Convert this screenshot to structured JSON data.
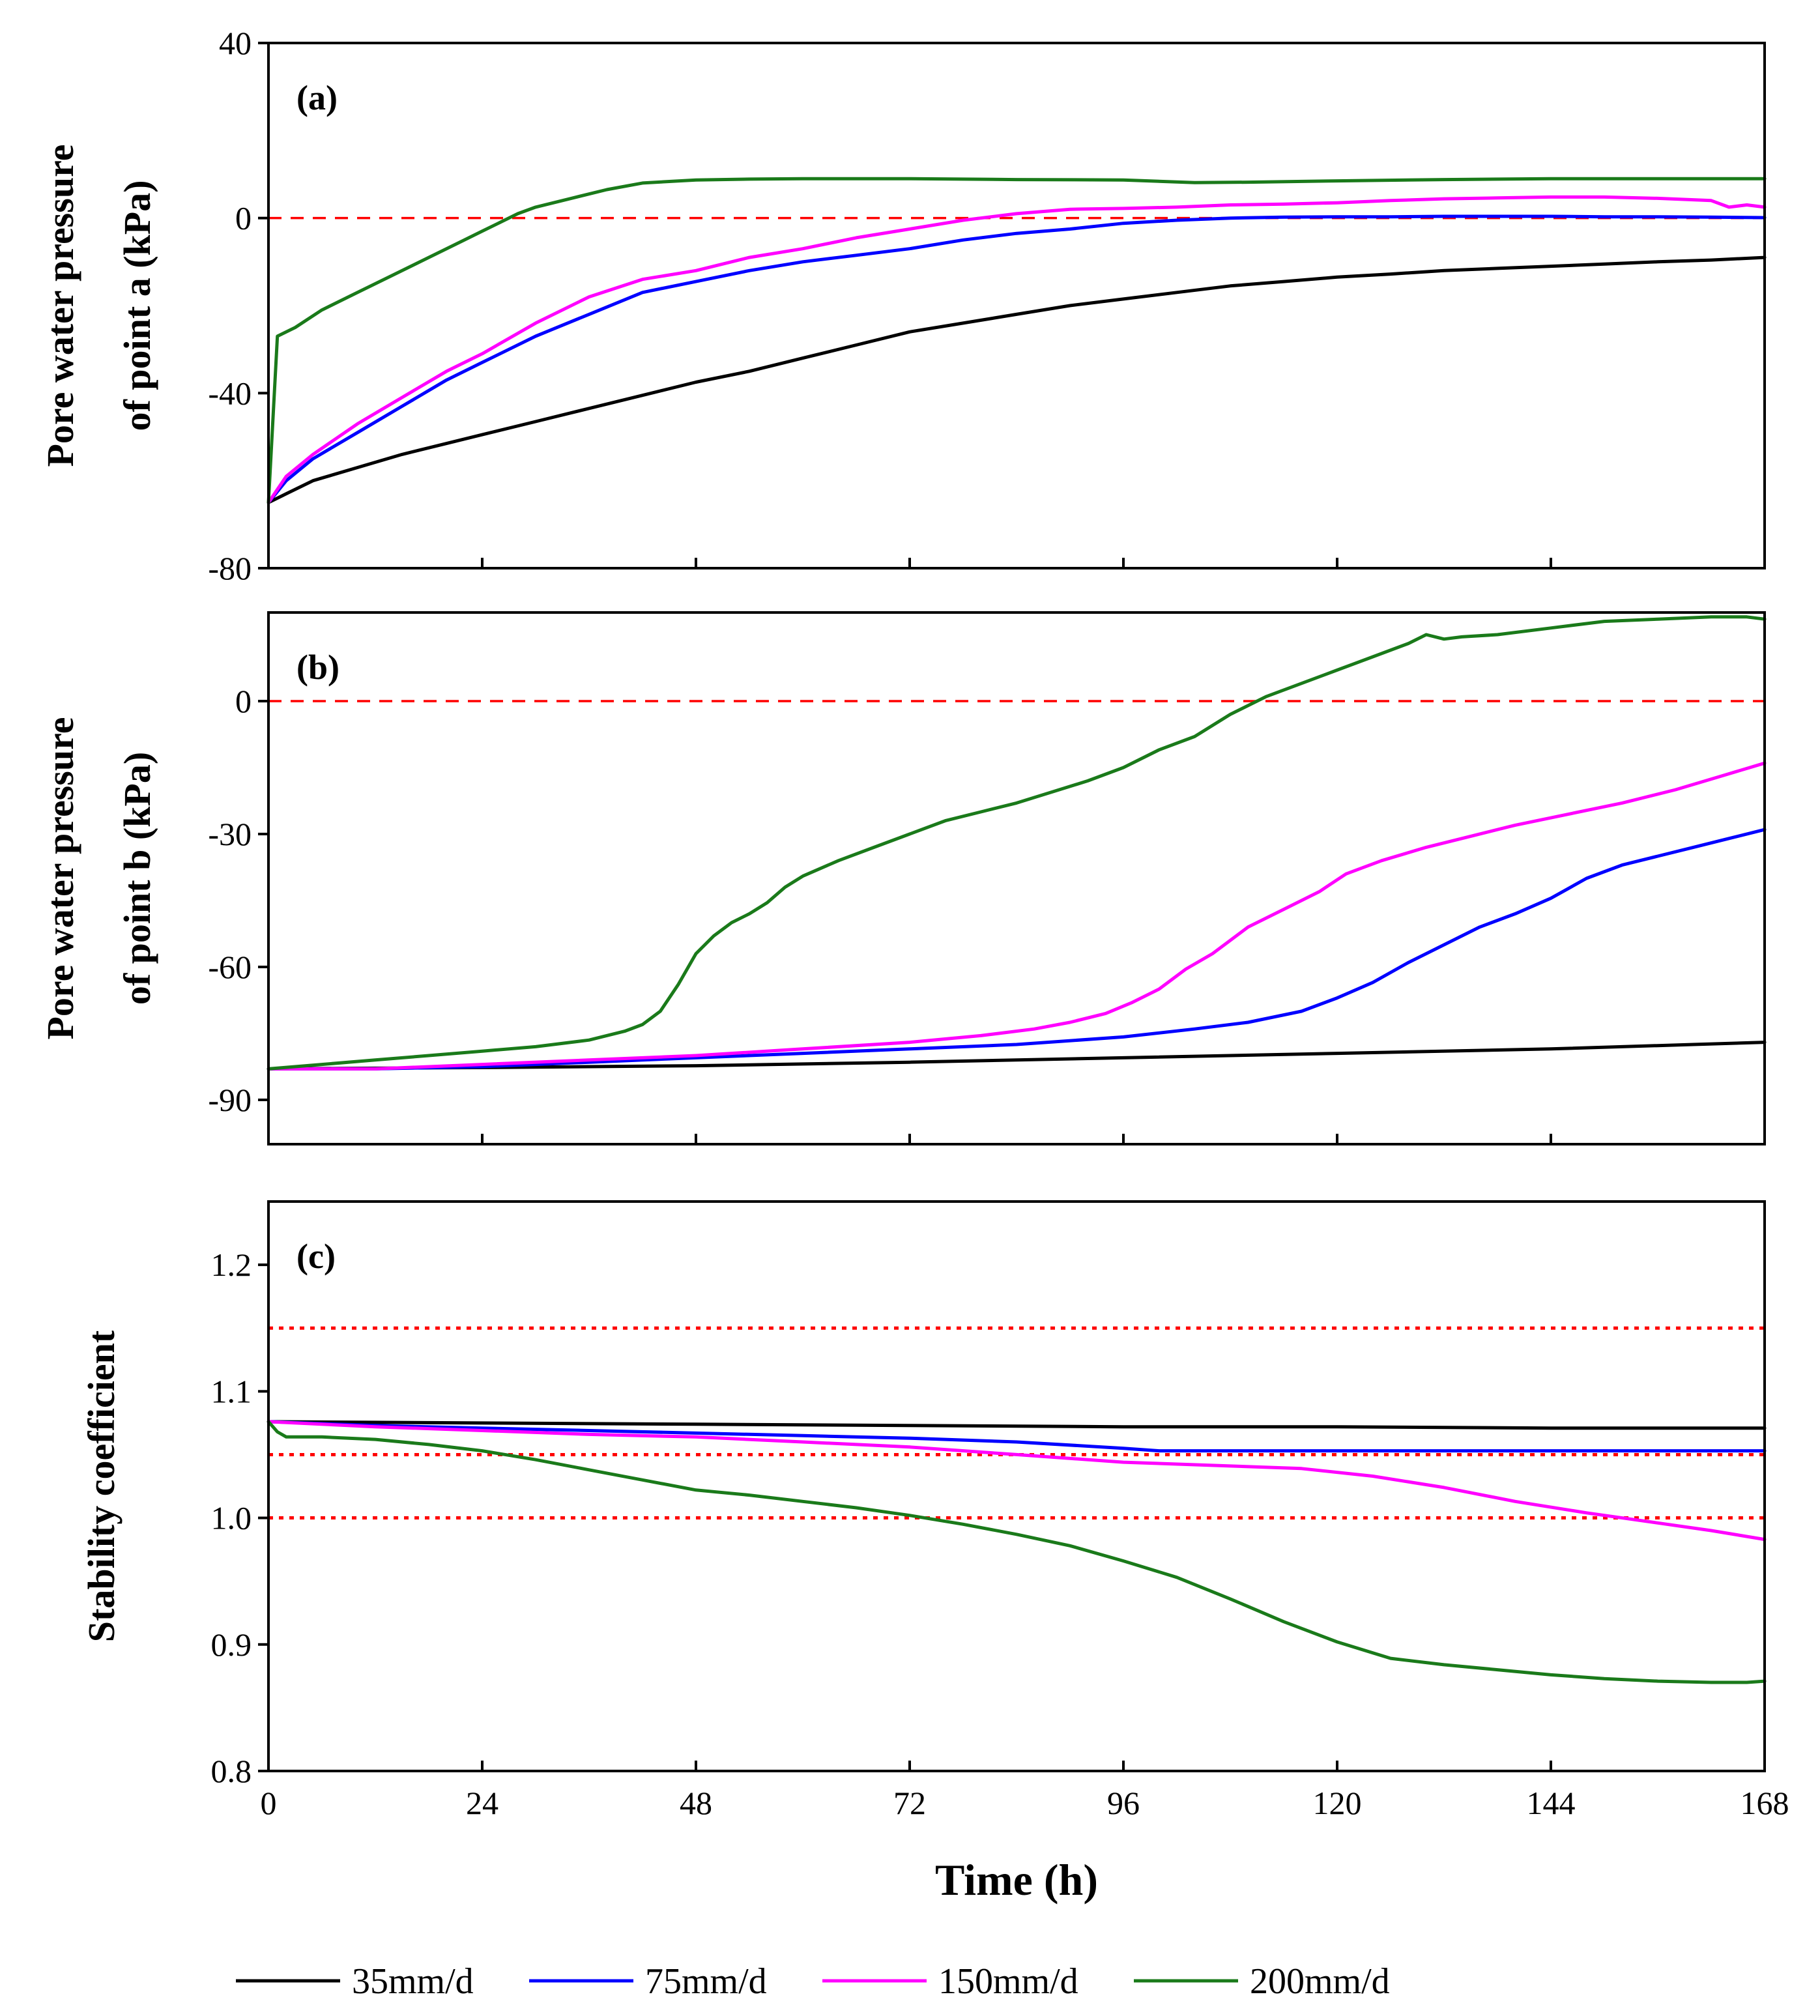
{
  "chart_data": [
    {
      "type": "line",
      "panel_label": "(a)",
      "ylabel": [
        "Pore water pressure",
        "of point a (kPa)"
      ],
      "xlabel": "",
      "xlim": [
        0,
        168
      ],
      "ylim": [
        -80,
        40
      ],
      "xticks": [
        0,
        24,
        48,
        72,
        96,
        120,
        144,
        168
      ],
      "yticks": [
        -80,
        -40,
        0,
        40
      ],
      "reference_lines": [
        {
          "y": 0,
          "style": "dashed",
          "color": "#ff0000"
        }
      ],
      "series": [
        {
          "name": "35mm/d",
          "color": "#000000",
          "x": [
            0,
            2,
            5,
            10,
            15,
            20,
            24,
            30,
            36,
            42,
            48,
            54,
            60,
            66,
            72,
            78,
            84,
            90,
            96,
            102,
            108,
            114,
            120,
            126,
            132,
            138,
            144,
            150,
            156,
            162,
            168
          ],
          "y": [
            -65,
            -63,
            -60,
            -57,
            -54,
            -51.5,
            -49.5,
            -46.5,
            -43.5,
            -40.5,
            -37.5,
            -35,
            -32,
            -29,
            -26,
            -24,
            -22,
            -20,
            -18.5,
            -17,
            -15.5,
            -14.5,
            -13.5,
            -12.8,
            -12,
            -11.5,
            -11,
            -10.5,
            -10,
            -9.6,
            -9
          ]
        },
        {
          "name": "75mm/d",
          "color": "#0000ff",
          "x": [
            0,
            2,
            5,
            10,
            15,
            20,
            24,
            30,
            36,
            42,
            48,
            54,
            60,
            66,
            72,
            78,
            84,
            90,
            96,
            102,
            108,
            114,
            120,
            126,
            132,
            138,
            144,
            150,
            156,
            162,
            168
          ],
          "y": [
            -65,
            -60,
            -55,
            -49,
            -43,
            -37,
            -33,
            -27,
            -22,
            -17,
            -14.5,
            -12,
            -10,
            -8.5,
            -7,
            -5,
            -3.5,
            -2.5,
            -1.2,
            -0.5,
            0,
            0.2,
            0.3,
            0.3,
            0.4,
            0.4,
            0.4,
            0.3,
            0.3,
            0.2,
            0.1
          ]
        },
        {
          "name": "150mm/d",
          "color": "#ff00ff",
          "x": [
            0,
            2,
            5,
            10,
            15,
            20,
            24,
            30,
            36,
            42,
            48,
            54,
            60,
            66,
            72,
            78,
            84,
            90,
            96,
            102,
            108,
            114,
            120,
            126,
            132,
            138,
            144,
            150,
            156,
            162,
            164,
            166,
            168
          ],
          "y": [
            -65,
            -59,
            -54,
            -47,
            -41,
            -35,
            -31,
            -24,
            -18,
            -14,
            -12,
            -9,
            -7,
            -4.5,
            -2.5,
            -0.5,
            1,
            2,
            2.2,
            2.5,
            3,
            3.2,
            3.5,
            4,
            4.4,
            4.6,
            4.8,
            4.8,
            4.5,
            4,
            2.5,
            3,
            2.5
          ]
        },
        {
          "name": "200mm/d",
          "color": "#1a7a1a",
          "x": [
            0,
            1,
            3,
            6,
            10,
            14,
            18,
            22,
            24,
            26,
            28,
            30,
            34,
            38,
            42,
            48,
            54,
            60,
            72,
            84,
            96,
            104,
            110,
            120,
            132,
            144,
            156,
            168
          ],
          "y": [
            -65,
            -27,
            -25,
            -21,
            -17,
            -13,
            -9,
            -5,
            -3,
            -1,
            1,
            2.5,
            4.5,
            6.5,
            8,
            8.7,
            8.9,
            9,
            9,
            8.8,
            8.7,
            8.1,
            8.2,
            8.5,
            8.8,
            9,
            9,
            9
          ]
        }
      ]
    },
    {
      "type": "line",
      "panel_label": "(b)",
      "ylabel": [
        "Pore water pressure",
        "of point b (kPa)"
      ],
      "xlabel": "",
      "xlim": [
        0,
        168
      ],
      "ylim": [
        -100,
        20
      ],
      "xticks": [
        0,
        24,
        48,
        72,
        96,
        120,
        144,
        168
      ],
      "yticks": [
        -90,
        -60,
        -30,
        0
      ],
      "reference_lines": [
        {
          "y": 0,
          "style": "dashed",
          "color": "#ff0000"
        }
      ],
      "series": [
        {
          "name": "35mm/d",
          "color": "#000000",
          "x": [
            0,
            24,
            48,
            72,
            96,
            120,
            144,
            160,
            168
          ],
          "y": [
            -83,
            -82.7,
            -82.3,
            -81.5,
            -80.5,
            -79.5,
            -78.5,
            -77.5,
            -77
          ]
        },
        {
          "name": "75mm/d",
          "color": "#0000ff",
          "x": [
            0,
            12,
            24,
            36,
            48,
            60,
            72,
            84,
            96,
            104,
            110,
            116,
            120,
            124,
            128,
            132,
            136,
            140,
            144,
            148,
            152,
            156,
            160,
            164,
            168
          ],
          "y": [
            -83,
            -83,
            -82.5,
            -81.5,
            -80.5,
            -79.5,
            -78.5,
            -77.5,
            -75.8,
            -74,
            -72.5,
            -70,
            -67,
            -63.5,
            -59,
            -55,
            -51,
            -48,
            -44.5,
            -40,
            -37,
            -35,
            -33,
            -31,
            -29
          ]
        },
        {
          "name": "150mm/d",
          "color": "#ff00ff",
          "x": [
            0,
            12,
            24,
            36,
            48,
            60,
            72,
            80,
            86,
            90,
            94,
            97,
            100,
            103,
            106,
            110,
            114,
            118,
            121,
            125,
            130,
            135,
            140,
            146,
            152,
            158,
            163,
            168
          ],
          "y": [
            -83,
            -83,
            -82,
            -81,
            -80,
            -78.5,
            -77,
            -75.5,
            -74,
            -72.5,
            -70.5,
            -68,
            -65,
            -60.5,
            -57,
            -51,
            -47,
            -43,
            -39,
            -36,
            -33,
            -30.5,
            -28,
            -25.5,
            -23,
            -20,
            -17,
            -14
          ]
        },
        {
          "name": "200mm/d",
          "color": "#1a7a1a",
          "x": [
            0,
            6,
            12,
            18,
            24,
            30,
            36,
            40,
            42,
            44,
            46,
            48,
            50,
            52,
            54,
            56,
            58,
            60,
            64,
            68,
            72,
            76,
            80,
            84,
            88,
            92,
            96,
            100,
            104,
            108,
            112,
            116,
            120,
            124,
            128,
            130,
            132,
            134,
            138,
            144,
            150,
            156,
            162,
            166,
            168
          ],
          "y": [
            -83,
            -82,
            -81,
            -80,
            -79,
            -78,
            -76.5,
            -74.5,
            -73,
            -70,
            -64,
            -57,
            -53,
            -50,
            -48,
            -45.5,
            -42,
            -39.5,
            -36,
            -33,
            -30,
            -27,
            -25,
            -23,
            -20.5,
            -18,
            -15,
            -11,
            -8,
            -3,
            1,
            4,
            7,
            10,
            13,
            15,
            14,
            14.5,
            15,
            16.5,
            18,
            18.5,
            19,
            19,
            18.5
          ]
        }
      ]
    },
    {
      "type": "line",
      "panel_label": "(c)",
      "ylabel": [
        "Stability coefficient"
      ],
      "xlabel": "Time (h)",
      "xlim": [
        0,
        168
      ],
      "ylim": [
        0.8,
        1.25
      ],
      "xticks": [
        0,
        24,
        48,
        72,
        96,
        120,
        144,
        168
      ],
      "xtick_labels": [
        "0",
        "24",
        "48",
        "72",
        "96",
        "120",
        "144",
        "168"
      ],
      "yticks": [
        0.8,
        0.9,
        1.0,
        1.1,
        1.2
      ],
      "ytick_labels": [
        "0.8",
        "0.9",
        "1.0",
        "1.1",
        "1.2"
      ],
      "reference_lines": [
        {
          "y": 1.15,
          "style": "dotted",
          "color": "#ff0000"
        },
        {
          "y": 1.05,
          "style": "dotted",
          "color": "#ff0000"
        },
        {
          "y": 1.0,
          "style": "dotted",
          "color": "#ff0000"
        }
      ],
      "series": [
        {
          "name": "35mm/d",
          "color": "#000000",
          "x": [
            0,
            24,
            48,
            72,
            96,
            120,
            144,
            168
          ],
          "y": [
            1.076,
            1.075,
            1.074,
            1.073,
            1.072,
            1.072,
            1.071,
            1.071
          ]
        },
        {
          "name": "75mm/d",
          "color": "#0000ff",
          "x": [
            0,
            12,
            24,
            36,
            48,
            60,
            72,
            84,
            96,
            100,
            110,
            120,
            144,
            168
          ],
          "y": [
            1.076,
            1.073,
            1.071,
            1.069,
            1.067,
            1.065,
            1.063,
            1.06,
            1.055,
            1.053,
            1.053,
            1.053,
            1.053,
            1.053
          ]
        },
        {
          "name": "150mm/d",
          "color": "#ff00ff",
          "x": [
            0,
            12,
            24,
            36,
            48,
            60,
            72,
            84,
            96,
            108,
            116,
            124,
            132,
            140,
            148,
            156,
            162,
            168
          ],
          "y": [
            1.076,
            1.072,
            1.069,
            1.066,
            1.064,
            1.06,
            1.056,
            1.05,
            1.044,
            1.041,
            1.039,
            1.033,
            1.024,
            1.013,
            1.004,
            0.996,
            0.99,
            0.983
          ]
        },
        {
          "name": "200mm/d",
          "color": "#1a7a1a",
          "x": [
            0,
            1,
            2,
            6,
            12,
            18,
            24,
            30,
            36,
            42,
            48,
            54,
            60,
            66,
            72,
            78,
            84,
            90,
            96,
            102,
            108,
            114,
            120,
            126,
            132,
            138,
            144,
            150,
            156,
            162,
            166,
            168
          ],
          "y": [
            1.076,
            1.068,
            1.064,
            1.064,
            1.062,
            1.058,
            1.053,
            1.046,
            1.038,
            1.03,
            1.022,
            1.018,
            1.013,
            1.008,
            1.002,
            0.995,
            0.987,
            0.978,
            0.966,
            0.953,
            0.936,
            0.918,
            0.902,
            0.889,
            0.884,
            0.88,
            0.876,
            0.873,
            0.871,
            0.87,
            0.87,
            0.871
          ]
        }
      ]
    }
  ],
  "legend": [
    {
      "label": "35mm/d",
      "color": "#000000"
    },
    {
      "label": "75mm/d",
      "color": "#0000ff"
    },
    {
      "label": "150mm/d",
      "color": "#ff00ff"
    },
    {
      "label": "200mm/d",
      "color": "#1a7a1a"
    }
  ]
}
